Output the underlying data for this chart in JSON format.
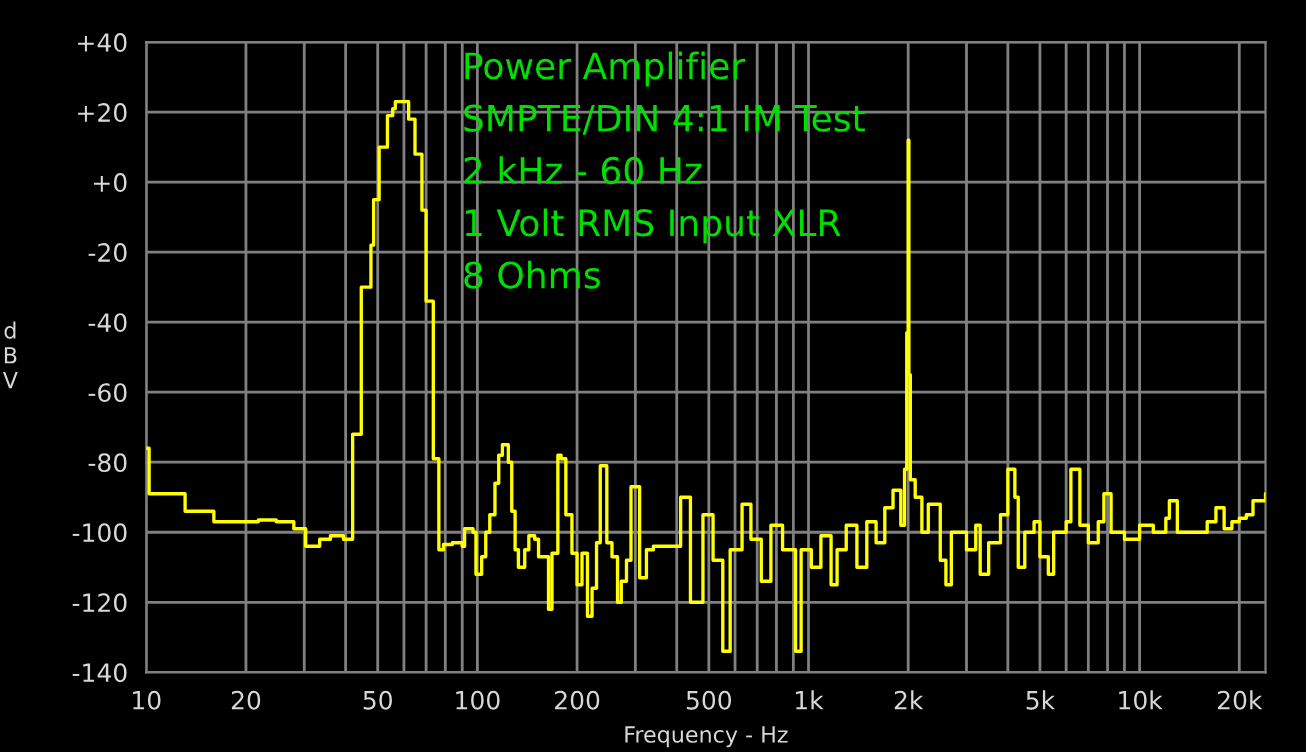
{
  "chart_data": {
    "type": "step",
    "title": "Power Amplifier",
    "annotations": [
      "SMPTE/DIN 4:1 IM Test",
      "2 kHz - 60 Hz",
      "1 Volt RMS Input XLR",
      "8 Ohms"
    ],
    "xlabel": "Frequency - Hz",
    "ylabel": "dBV",
    "log": "x",
    "grid": true,
    "legend": false,
    "xlim": [
      10,
      24000
    ],
    "ylim": [
      -140,
      40
    ],
    "xticks": [
      10,
      20,
      {
        "value": 30,
        "label": null
      },
      {
        "value": 40,
        "label": null
      },
      50,
      {
        "value": 60,
        "label": null
      },
      {
        "value": 70,
        "label": null
      },
      {
        "value": 80,
        "label": null
      },
      {
        "value": 90,
        "label": null
      },
      100,
      200,
      {
        "value": 300,
        "label": null
      },
      {
        "value": 400,
        "label": null
      },
      500,
      {
        "value": 600,
        "label": null
      },
      {
        "value": 700,
        "label": null
      },
      {
        "value": 800,
        "label": null
      },
      {
        "value": 900,
        "label": null
      },
      {
        "value": 1000,
        "label": "1k"
      },
      {
        "value": 2000,
        "label": "2k"
      },
      {
        "value": 3000,
        "label": null
      },
      {
        "value": 4000,
        "label": null
      },
      {
        "value": 5000,
        "label": "5k"
      },
      {
        "value": 6000,
        "label": null
      },
      {
        "value": 7000,
        "label": null
      },
      {
        "value": 8000,
        "label": null
      },
      {
        "value": 9000,
        "label": null
      },
      {
        "value": 10000,
        "label": "10k"
      },
      {
        "value": 20000,
        "label": "20k"
      }
    ],
    "yticks": [
      {
        "value": 40,
        "label": "+40"
      },
      {
        "value": 20,
        "label": "+20"
      },
      {
        "value": 0,
        "label": "+0"
      },
      -20,
      -40,
      -60,
      -80,
      -100,
      -120,
      -140
    ],
    "series": [
      {
        "color": "#ffff00",
        "x": [
          10,
          10.2,
          13.1,
          16,
          19,
          21.8,
          24.7,
          27.9,
          30.3,
          33.4,
          36,
          39.4,
          42,
          44.6,
          47.7,
          48.6,
          50.5,
          53.5,
          55.5,
          56.5,
          62,
          64.8,
          68,
          70,
          73.6,
          76.5,
          79,
          84,
          90,
          91.5,
          97,
          99,
          103,
          106,
          109,
          113,
          116,
          119,
          124,
          127,
          130,
          133,
          139,
          143,
          149,
          153,
          160,
          164,
          168,
          175,
          179,
          185,
          193,
          200,
          207,
          215,
          222,
          229,
          235,
          238,
          246,
          255,
          265,
          272,
          282,
          291,
          309,
          324,
          340,
          411,
          440,
          480,
          515,
          551,
          580,
          630,
          670,
          720,
          770,
          835,
          914,
          950,
          1020,
          1090,
          1170,
          1220,
          1300,
          1400,
          1500,
          1600,
          1700,
          1800,
          1900,
          1950,
          1980,
          2000,
          2010,
          2030,
          2100,
          2200,
          2300,
          2500,
          2600,
          2700,
          3000,
          3200,
          3300,
          3500,
          3800,
          4000,
          4200,
          4300,
          4500,
          4800,
          5000,
          5300,
          5500,
          6000,
          6200,
          6600,
          7000,
          7500,
          7800,
          8200,
          9000,
          10000,
          11000,
          12000,
          12300,
          13000,
          15000,
          16000,
          17000,
          18000,
          19000,
          20000,
          21000,
          22000,
          24000
        ],
        "values": [
          -76,
          -89,
          -94,
          -97,
          -97,
          -96.5,
          -97,
          -99,
          -104,
          -102,
          -101,
          -102,
          -72,
          -30,
          -18,
          -5,
          10,
          19,
          21,
          23,
          18,
          8,
          -8,
          -34,
          -79,
          -105,
          -103.5,
          -103,
          -104,
          -99,
          -100,
          -112,
          -107,
          -100,
          -95,
          -86,
          -78,
          -75,
          -80,
          -94,
          -105,
          -110,
          -105,
          -101,
          -102,
          -107,
          -107,
          -122,
          -106,
          -78,
          -79,
          -95,
          -106,
          -115,
          -106,
          -124,
          -116,
          -103,
          -81,
          -81,
          -103,
          -107,
          -120,
          -114,
          -108,
          -87,
          -113,
          -105,
          -104,
          -90,
          -120,
          -95,
          -108,
          -134,
          -105,
          -92,
          -102,
          -114,
          -98,
          -105,
          -134,
          -105,
          -110,
          -101,
          -115,
          -105,
          -98,
          -110,
          -97,
          -103,
          -93,
          -88,
          -98,
          -82,
          -43,
          12,
          -55,
          -85,
          -90,
          -100,
          -92,
          -108,
          -115,
          -100,
          -105,
          -98,
          -112,
          -103,
          -95,
          -82,
          -90,
          -110,
          -100,
          -97,
          -107,
          -112,
          -100,
          -97,
          -82,
          -98,
          -103,
          -97,
          -89,
          -100,
          -102,
          -98,
          -100,
          -96,
          -91,
          -100,
          -100,
          -97,
          -93,
          -99,
          -97,
          -96,
          -95,
          -91,
          -89
        ]
      }
    ]
  }
}
